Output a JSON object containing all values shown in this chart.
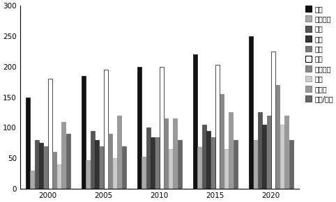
{
  "years": [
    2000,
    2005,
    2010,
    2015,
    2020
  ],
  "categories": [
    "커튼",
    "블라인드",
    "벽지",
    "카펫",
    "모포",
    "쉬트",
    "침대덮개",
    "커버",
    "와이퍼",
    "행주/타올"
  ],
  "values": {
    "커튼": [
      150,
      185,
      200,
      220,
      250
    ],
    "블라인드": [
      30,
      47,
      52,
      68,
      80
    ],
    "벽지": [
      80,
      95,
      100,
      105,
      125
    ],
    "카펫": [
      75,
      80,
      85,
      95,
      105
    ],
    "모포": [
      70,
      70,
      85,
      85,
      120
    ],
    "쉬트": [
      180,
      195,
      200,
      203,
      225
    ],
    "침대덮개": [
      60,
      90,
      115,
      155,
      170
    ],
    "커버": [
      40,
      50,
      65,
      65,
      105
    ],
    "와이퍼": [
      110,
      120,
      115,
      125,
      120
    ],
    "행주/타올": [
      90,
      70,
      80,
      80,
      80
    ]
  },
  "colors": {
    "커튼": "#111111",
    "블라인드": "#aaaaaa",
    "벽지": "#555555",
    "카펫": "#333333",
    "모포": "#777777",
    "쉬트": "#ffffff",
    "침대덮개": "#888888",
    "커버": "#cccccc",
    "와이퍼": "#999999",
    "행주/타올": "#666666"
  },
  "edgecolors": {
    "커튼": "#111111",
    "블라인드": "#888888",
    "벽지": "#444444",
    "카펫": "#222222",
    "모포": "#666666",
    "쉬트": "#000000",
    "침대덮개": "#777777",
    "커버": "#aaaaaa",
    "와이퍼": "#888888",
    "행주/타올": "#555555"
  },
  "ylim": [
    0,
    300
  ],
  "yticks": [
    0,
    50,
    100,
    150,
    200,
    250,
    300
  ],
  "background_color": "#ffffff",
  "legend_fontsize": 7.0,
  "tick_fontsize": 7.5
}
